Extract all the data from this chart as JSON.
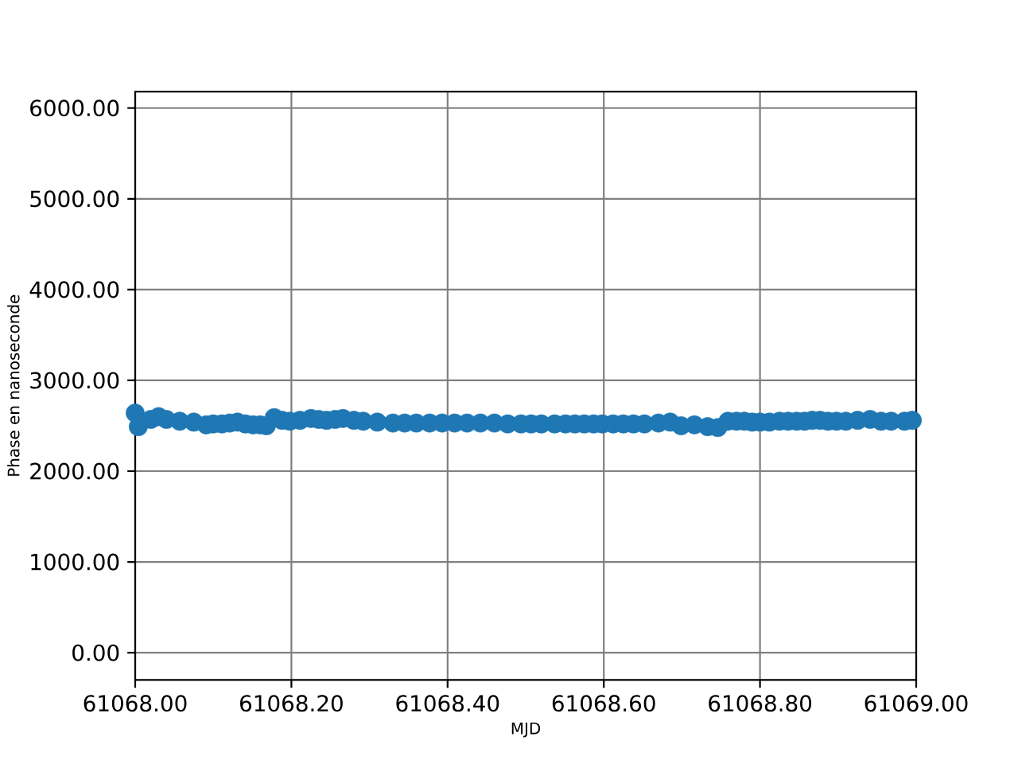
{
  "chart_data": {
    "type": "scatter",
    "xlabel": "MJD",
    "ylabel": "Phase en nanoseconde",
    "x": [
      61068.0,
      61068.004,
      61068.02,
      61068.03,
      61068.04,
      61068.057,
      61068.075,
      61068.091,
      61068.1,
      61068.111,
      61068.121,
      61068.131,
      61068.141,
      61068.151,
      61068.16,
      61068.168,
      61068.178,
      61068.188,
      61068.198,
      61068.211,
      61068.225,
      61068.235,
      61068.245,
      61068.256,
      61068.266,
      61068.28,
      61068.292,
      61068.31,
      61068.33,
      61068.345,
      61068.36,
      61068.377,
      61068.393,
      61068.409,
      61068.425,
      61068.442,
      61068.46,
      61068.477,
      61068.494,
      61068.507,
      61068.52,
      61068.537,
      61068.551,
      61068.563,
      61068.575,
      61068.587,
      61068.598,
      61068.612,
      61068.625,
      61068.638,
      61068.652,
      61068.67,
      61068.685,
      61068.699,
      61068.716,
      61068.733,
      61068.746,
      61068.759,
      61068.77,
      61068.78,
      61068.79,
      61068.8,
      61068.812,
      61068.825,
      61068.836,
      61068.847,
      61068.857,
      61068.867,
      61068.877,
      61068.887,
      61068.898,
      61068.91,
      61068.925,
      61068.941,
      61068.955,
      61068.968,
      61068.985,
      61068.995
    ],
    "values": [
      2640,
      2490,
      2570,
      2600,
      2570,
      2550,
      2540,
      2510,
      2520,
      2520,
      2530,
      2540,
      2520,
      2510,
      2510,
      2500,
      2590,
      2560,
      2550,
      2560,
      2580,
      2570,
      2560,
      2570,
      2580,
      2560,
      2550,
      2540,
      2530,
      2530,
      2530,
      2530,
      2530,
      2530,
      2530,
      2530,
      2530,
      2520,
      2520,
      2520,
      2520,
      2520,
      2520,
      2520,
      2520,
      2520,
      2520,
      2520,
      2520,
      2520,
      2520,
      2530,
      2540,
      2500,
      2510,
      2490,
      2480,
      2550,
      2550,
      2550,
      2540,
      2540,
      2540,
      2550,
      2550,
      2550,
      2550,
      2560,
      2560,
      2550,
      2550,
      2550,
      2560,
      2570,
      2550,
      2550,
      2550,
      2560
    ],
    "color": "#1f77b4",
    "marker": "circle",
    "xlim": [
      61068.0,
      61069.0
    ],
    "ylim": [
      -300,
      6180
    ],
    "xticks": [
      {
        "value": 61068.0,
        "label": "61068.00"
      },
      {
        "value": 61068.2,
        "label": "61068.20"
      },
      {
        "value": 61068.4,
        "label": "61068.40"
      },
      {
        "value": 61068.6,
        "label": "61068.60"
      },
      {
        "value": 61068.8,
        "label": "61068.80"
      },
      {
        "value": 61069.0,
        "label": "61069.00"
      }
    ],
    "yticks": [
      {
        "value": 0,
        "label": "0.00"
      },
      {
        "value": 1000,
        "label": "1000.00"
      },
      {
        "value": 2000,
        "label": "2000.00"
      },
      {
        "value": 3000,
        "label": "3000.00"
      },
      {
        "value": 4000,
        "label": "4000.00"
      },
      {
        "value": 5000,
        "label": "5000.00"
      },
      {
        "value": 6000,
        "label": "6000.00"
      }
    ],
    "grid": true
  }
}
